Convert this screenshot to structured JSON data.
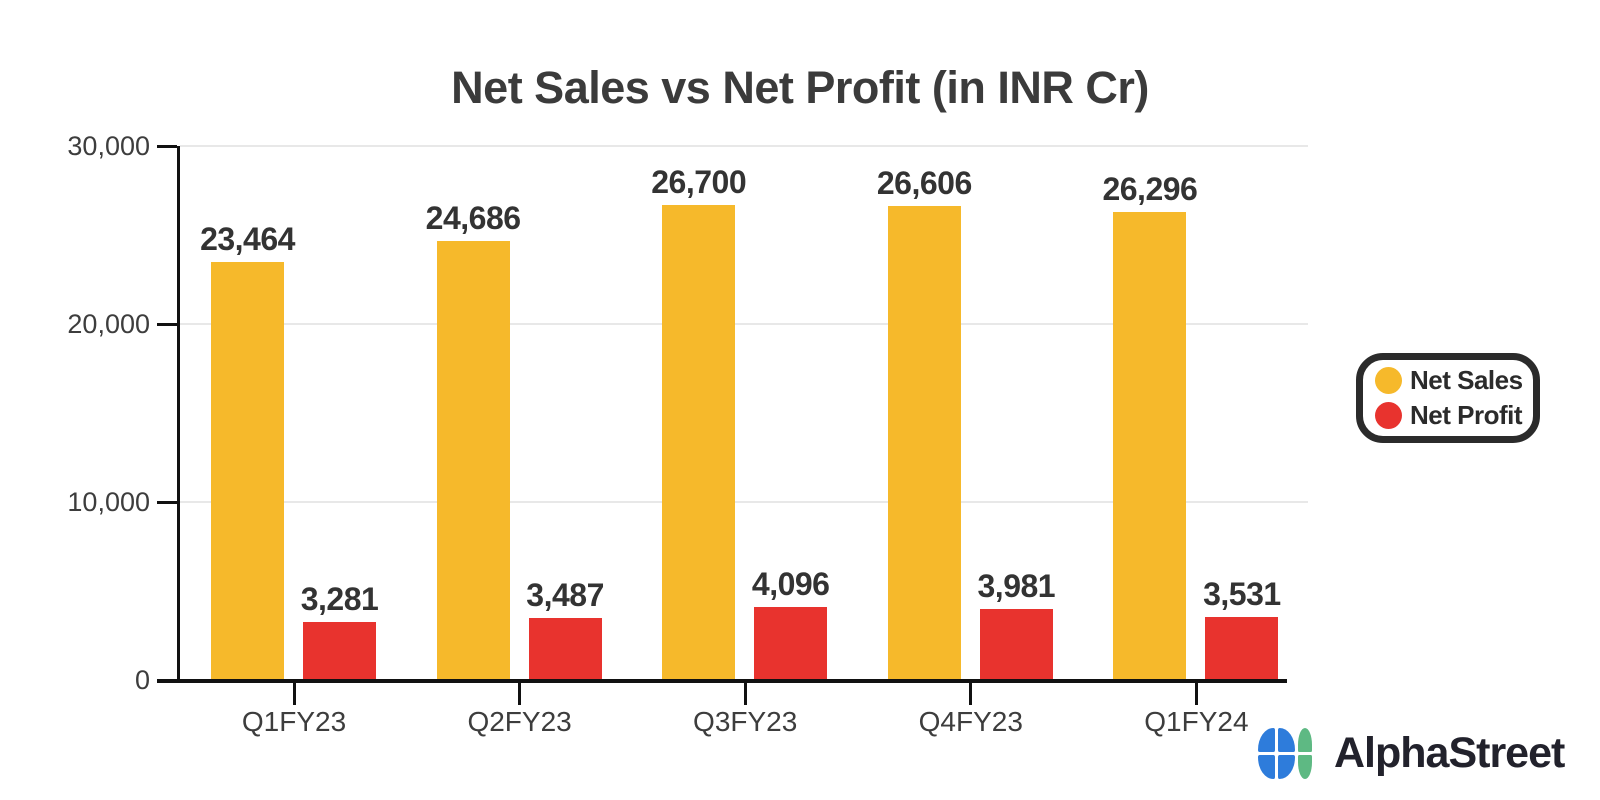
{
  "chart_data": {
    "type": "bar",
    "title": "Net Sales vs Net Profit (in INR Cr)",
    "categories": [
      "Q1FY23",
      "Q2FY23",
      "Q3FY23",
      "Q4FY23",
      "Q1FY24"
    ],
    "series": [
      {
        "name": "Net Sales",
        "color": "#F6B92B",
        "values": [
          23464,
          24686,
          26700,
          26606,
          26296
        ],
        "labels": [
          "23,464",
          "24,686",
          "26,700",
          "26,606",
          "26,296"
        ]
      },
      {
        "name": "Net Profit",
        "color": "#E8332E",
        "values": [
          3281,
          3487,
          4096,
          3981,
          3531
        ],
        "labels": [
          "3,281",
          "3,487",
          "4,096",
          "3,981",
          "3,531"
        ]
      }
    ],
    "ylim": [
      0,
      30000
    ],
    "y_ticks": [
      {
        "value": 0,
        "label": "0"
      },
      {
        "value": 10000,
        "label": "10,000"
      },
      {
        "value": 20000,
        "label": "20,000"
      },
      {
        "value": 30000,
        "label": "30,000"
      }
    ],
    "grid": "horizontal-light",
    "legend_position": "middle-right",
    "bar_value_labels": "above-bars"
  },
  "legend": {
    "border_color": "#2b2b2b",
    "background": "#ffffff"
  },
  "branding": {
    "name": "AlphaStreet",
    "icon": "alphastreet-clover-icon",
    "icon_colors": {
      "blue": "#2E7CDB",
      "green": "#5EB983"
    },
    "text_color": "#22222c"
  },
  "colors": {
    "axis": "#111111",
    "gridline": "#e8e8e8",
    "title_text": "#3b3b3b",
    "label_text": "#333333",
    "background": "#ffffff"
  }
}
